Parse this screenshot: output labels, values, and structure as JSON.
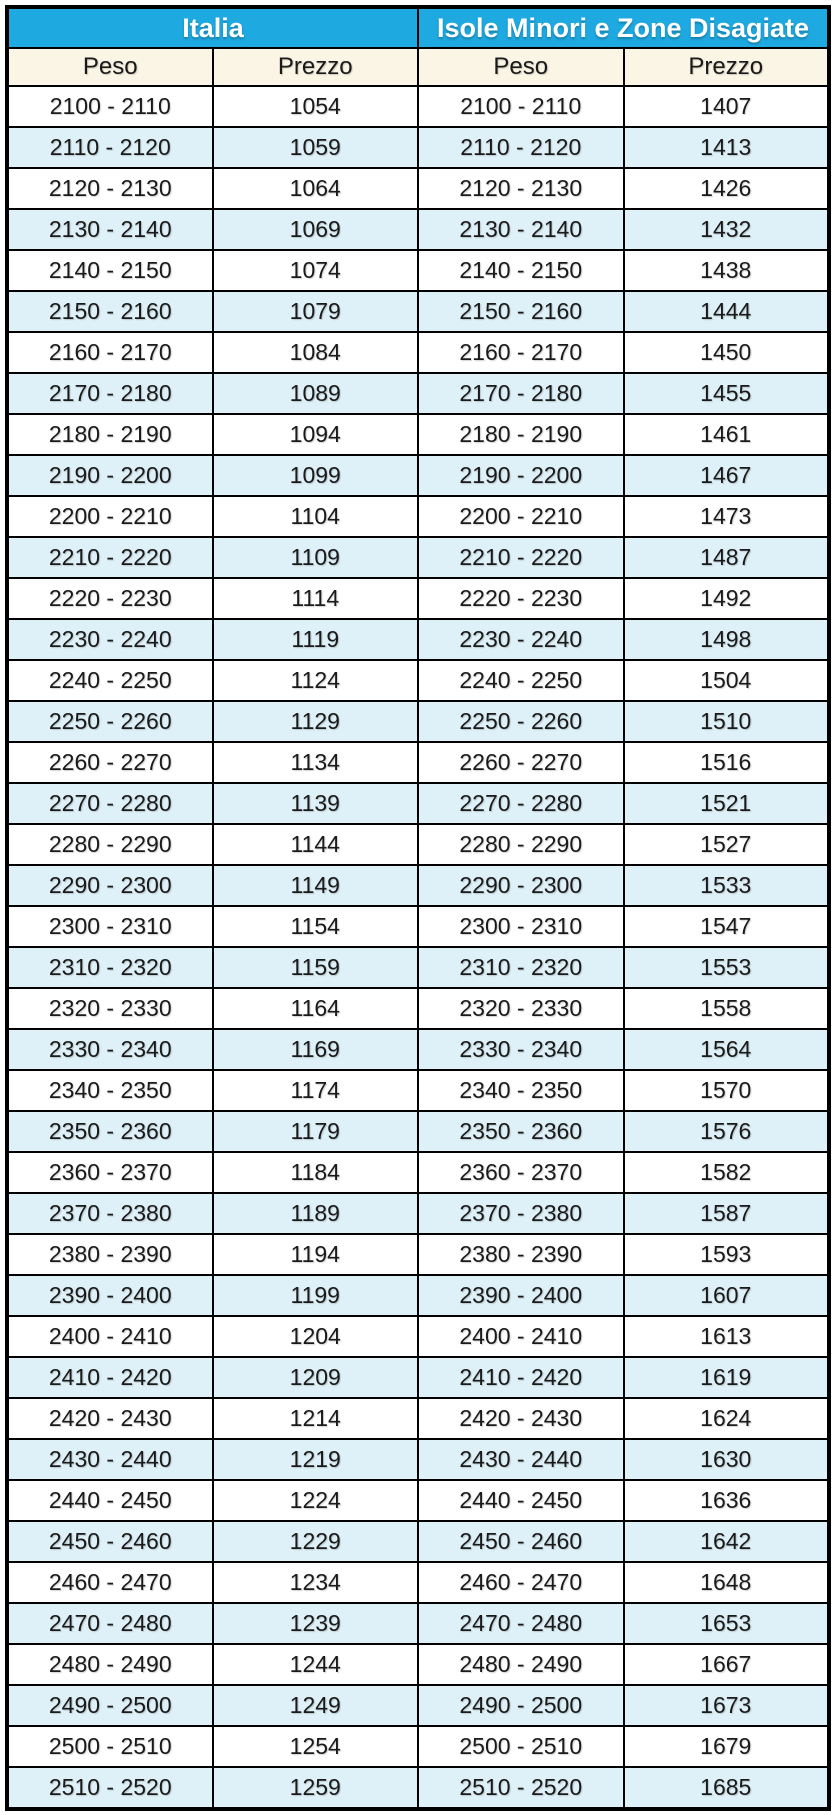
{
  "table": {
    "header": {
      "italia": "Italia",
      "isole": "Isole Minori e Zone Disagiate"
    },
    "subheader": {
      "peso": "Peso",
      "prezzo": "Prezzo"
    },
    "colors": {
      "header_bg": "#1EA9E1",
      "header_text": "#FFFFFF",
      "subheader_bg": "#FBF5E5",
      "row_bg": "#FFFFFF",
      "row_alt_bg": "#DFF1F8",
      "border": "#000000",
      "text": "#1A1A1A"
    },
    "rows": [
      {
        "peso": "2100 - 2110",
        "italia_prezzo": "1054",
        "isole_prezzo": "1407"
      },
      {
        "peso": "2110 - 2120",
        "italia_prezzo": "1059",
        "isole_prezzo": "1413"
      },
      {
        "peso": "2120 - 2130",
        "italia_prezzo": "1064",
        "isole_prezzo": "1426"
      },
      {
        "peso": "2130 - 2140",
        "italia_prezzo": "1069",
        "isole_prezzo": "1432"
      },
      {
        "peso": "2140 - 2150",
        "italia_prezzo": "1074",
        "isole_prezzo": "1438"
      },
      {
        "peso": "2150 - 2160",
        "italia_prezzo": "1079",
        "isole_prezzo": "1444"
      },
      {
        "peso": "2160 - 2170",
        "italia_prezzo": "1084",
        "isole_prezzo": "1450"
      },
      {
        "peso": "2170 - 2180",
        "italia_prezzo": "1089",
        "isole_prezzo": "1455"
      },
      {
        "peso": "2180 - 2190",
        "italia_prezzo": "1094",
        "isole_prezzo": "1461"
      },
      {
        "peso": "2190 - 2200",
        "italia_prezzo": "1099",
        "isole_prezzo": "1467"
      },
      {
        "peso": "2200 - 2210",
        "italia_prezzo": "1104",
        "isole_prezzo": "1473"
      },
      {
        "peso": "2210 - 2220",
        "italia_prezzo": "1109",
        "isole_prezzo": "1487"
      },
      {
        "peso": "2220 - 2230",
        "italia_prezzo": "1114",
        "isole_prezzo": "1492"
      },
      {
        "peso": "2230 - 2240",
        "italia_prezzo": "1119",
        "isole_prezzo": "1498"
      },
      {
        "peso": "2240 - 2250",
        "italia_prezzo": "1124",
        "isole_prezzo": "1504"
      },
      {
        "peso": "2250 - 2260",
        "italia_prezzo": "1129",
        "isole_prezzo": "1510"
      },
      {
        "peso": "2260 - 2270",
        "italia_prezzo": "1134",
        "isole_prezzo": "1516"
      },
      {
        "peso": "2270 - 2280",
        "italia_prezzo": "1139",
        "isole_prezzo": "1521"
      },
      {
        "peso": "2280 - 2290",
        "italia_prezzo": "1144",
        "isole_prezzo": "1527"
      },
      {
        "peso": "2290 - 2300",
        "italia_prezzo": "1149",
        "isole_prezzo": "1533"
      },
      {
        "peso": "2300 - 2310",
        "italia_prezzo": "1154",
        "isole_prezzo": "1547"
      },
      {
        "peso": "2310 - 2320",
        "italia_prezzo": "1159",
        "isole_prezzo": "1553"
      },
      {
        "peso": "2320 - 2330",
        "italia_prezzo": "1164",
        "isole_prezzo": "1558"
      },
      {
        "peso": "2330 - 2340",
        "italia_prezzo": "1169",
        "isole_prezzo": "1564"
      },
      {
        "peso": "2340 - 2350",
        "italia_prezzo": "1174",
        "isole_prezzo": "1570"
      },
      {
        "peso": "2350 - 2360",
        "italia_prezzo": "1179",
        "isole_prezzo": "1576"
      },
      {
        "peso": "2360 - 2370",
        "italia_prezzo": "1184",
        "isole_prezzo": "1582"
      },
      {
        "peso": "2370 - 2380",
        "italia_prezzo": "1189",
        "isole_prezzo": "1587"
      },
      {
        "peso": "2380 - 2390",
        "italia_prezzo": "1194",
        "isole_prezzo": "1593"
      },
      {
        "peso": "2390 - 2400",
        "italia_prezzo": "1199",
        "isole_prezzo": "1607"
      },
      {
        "peso": "2400 - 2410",
        "italia_prezzo": "1204",
        "isole_prezzo": "1613"
      },
      {
        "peso": "2410 - 2420",
        "italia_prezzo": "1209",
        "isole_prezzo": "1619"
      },
      {
        "peso": "2420 - 2430",
        "italia_prezzo": "1214",
        "isole_prezzo": "1624"
      },
      {
        "peso": "2430 - 2440",
        "italia_prezzo": "1219",
        "isole_prezzo": "1630"
      },
      {
        "peso": "2440 - 2450",
        "italia_prezzo": "1224",
        "isole_prezzo": "1636"
      },
      {
        "peso": "2450 - 2460",
        "italia_prezzo": "1229",
        "isole_prezzo": "1642"
      },
      {
        "peso": "2460 - 2470",
        "italia_prezzo": "1234",
        "isole_prezzo": "1648"
      },
      {
        "peso": "2470 - 2480",
        "italia_prezzo": "1239",
        "isole_prezzo": "1653"
      },
      {
        "peso": "2480 - 2490",
        "italia_prezzo": "1244",
        "isole_prezzo": "1667"
      },
      {
        "peso": "2490 - 2500",
        "italia_prezzo": "1249",
        "isole_prezzo": "1673"
      },
      {
        "peso": "2500 - 2510",
        "italia_prezzo": "1254",
        "isole_prezzo": "1679"
      },
      {
        "peso": "2510 - 2520",
        "italia_prezzo": "1259",
        "isole_prezzo": "1685"
      }
    ]
  }
}
